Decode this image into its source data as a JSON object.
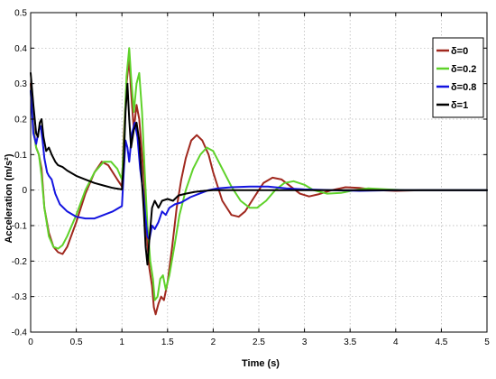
{
  "chart_data": {
    "type": "line",
    "title": "",
    "xlabel": "Time (s)",
    "ylabel": "Acceleration (m/s²)",
    "xlim": [
      0,
      5
    ],
    "ylim": [
      -0.4,
      0.5
    ],
    "xticks": [
      0,
      0.5,
      1,
      1.5,
      2,
      2.5,
      3,
      3.5,
      4,
      4.5,
      5
    ],
    "xtick_labels": [
      "0",
      "0.5",
      "1",
      "1.5",
      "2",
      "2.5",
      "3",
      "3.5",
      "4",
      "4.5",
      "5"
    ],
    "yticks": [
      -0.4,
      -0.3,
      -0.2,
      -0.1,
      0,
      0.1,
      0.2,
      0.3,
      0.4,
      0.5
    ],
    "ytick_labels": [
      "-0.4",
      "-0.3",
      "-0.2",
      "-0.1",
      "0",
      "0.1",
      "0.2",
      "0.3",
      "0.4",
      "0.5"
    ],
    "grid": true,
    "legend_position": "top-right",
    "series": [
      {
        "name": "δ=0",
        "color": "#a0281e",
        "points": [
          [
            0,
            0.3
          ],
          [
            0.03,
            0.18
          ],
          [
            0.06,
            0.12
          ],
          [
            0.09,
            0.1
          ],
          [
            0.12,
            0.06
          ],
          [
            0.15,
            -0.05
          ],
          [
            0.2,
            -0.12
          ],
          [
            0.25,
            -0.16
          ],
          [
            0.3,
            -0.175
          ],
          [
            0.35,
            -0.18
          ],
          [
            0.4,
            -0.16
          ],
          [
            0.5,
            -0.09
          ],
          [
            0.6,
            -0.01
          ],
          [
            0.7,
            0.05
          ],
          [
            0.78,
            0.08
          ],
          [
            0.85,
            0.07
          ],
          [
            0.95,
            0.03
          ],
          [
            1.0,
            0.01
          ],
          [
            1.02,
            0.15
          ],
          [
            1.05,
            0.3
          ],
          [
            1.08,
            0.37
          ],
          [
            1.1,
            0.28
          ],
          [
            1.13,
            0.17
          ],
          [
            1.16,
            0.24
          ],
          [
            1.19,
            0.2
          ],
          [
            1.22,
            0.1
          ],
          [
            1.25,
            0.0
          ],
          [
            1.27,
            -0.12
          ],
          [
            1.3,
            -0.22
          ],
          [
            1.33,
            -0.27
          ],
          [
            1.35,
            -0.33
          ],
          [
            1.37,
            -0.35
          ],
          [
            1.4,
            -0.32
          ],
          [
            1.43,
            -0.3
          ],
          [
            1.46,
            -0.31
          ],
          [
            1.5,
            -0.26
          ],
          [
            1.55,
            -0.16
          ],
          [
            1.6,
            -0.05
          ],
          [
            1.65,
            0.03
          ],
          [
            1.7,
            0.09
          ],
          [
            1.76,
            0.14
          ],
          [
            1.82,
            0.155
          ],
          [
            1.88,
            0.14
          ],
          [
            1.95,
            0.1
          ],
          [
            2.0,
            0.05
          ],
          [
            2.1,
            -0.03
          ],
          [
            2.2,
            -0.07
          ],
          [
            2.28,
            -0.075
          ],
          [
            2.35,
            -0.06
          ],
          [
            2.45,
            -0.02
          ],
          [
            2.55,
            0.02
          ],
          [
            2.65,
            0.035
          ],
          [
            2.75,
            0.03
          ],
          [
            2.85,
            0.01
          ],
          [
            2.95,
            -0.01
          ],
          [
            3.05,
            -0.018
          ],
          [
            3.15,
            -0.012
          ],
          [
            3.3,
            0.0
          ],
          [
            3.45,
            0.008
          ],
          [
            3.6,
            0.006
          ],
          [
            3.8,
            0.0
          ],
          [
            4.0,
            -0.002
          ],
          [
            4.3,
            0.0
          ],
          [
            4.6,
            0.0
          ],
          [
            5.0,
            0.0
          ]
        ]
      },
      {
        "name": "δ=0.2",
        "color": "#5fd22a",
        "points": [
          [
            0,
            0.28
          ],
          [
            0.03,
            0.17
          ],
          [
            0.06,
            0.12
          ],
          [
            0.09,
            0.1
          ],
          [
            0.12,
            0.04
          ],
          [
            0.15,
            -0.05
          ],
          [
            0.2,
            -0.13
          ],
          [
            0.25,
            -0.16
          ],
          [
            0.3,
            -0.165
          ],
          [
            0.35,
            -0.155
          ],
          [
            0.4,
            -0.13
          ],
          [
            0.5,
            -0.07
          ],
          [
            0.6,
            0.0
          ],
          [
            0.7,
            0.05
          ],
          [
            0.8,
            0.08
          ],
          [
            0.88,
            0.08
          ],
          [
            0.95,
            0.06
          ],
          [
            1.0,
            0.03
          ],
          [
            1.02,
            0.12
          ],
          [
            1.05,
            0.32
          ],
          [
            1.08,
            0.4
          ],
          [
            1.1,
            0.32
          ],
          [
            1.13,
            0.22
          ],
          [
            1.16,
            0.3
          ],
          [
            1.19,
            0.33
          ],
          [
            1.22,
            0.22
          ],
          [
            1.25,
            0.05
          ],
          [
            1.28,
            -0.1
          ],
          [
            1.31,
            -0.2
          ],
          [
            1.34,
            -0.25
          ],
          [
            1.36,
            -0.31
          ],
          [
            1.39,
            -0.3
          ],
          [
            1.42,
            -0.25
          ],
          [
            1.45,
            -0.24
          ],
          [
            1.48,
            -0.28
          ],
          [
            1.52,
            -0.24
          ],
          [
            1.58,
            -0.15
          ],
          [
            1.63,
            -0.07
          ],
          [
            1.7,
            0.0
          ],
          [
            1.78,
            0.06
          ],
          [
            1.86,
            0.1
          ],
          [
            1.93,
            0.12
          ],
          [
            2.0,
            0.11
          ],
          [
            2.1,
            0.06
          ],
          [
            2.2,
            0.01
          ],
          [
            2.3,
            -0.03
          ],
          [
            2.4,
            -0.05
          ],
          [
            2.48,
            -0.05
          ],
          [
            2.58,
            -0.03
          ],
          [
            2.68,
            0.0
          ],
          [
            2.78,
            0.02
          ],
          [
            2.88,
            0.025
          ],
          [
            3.0,
            0.015
          ],
          [
            3.1,
            0.0
          ],
          [
            3.25,
            -0.01
          ],
          [
            3.4,
            -0.008
          ],
          [
            3.55,
            0.0
          ],
          [
            3.7,
            0.005
          ],
          [
            3.9,
            0.002
          ],
          [
            4.1,
            0.0
          ],
          [
            4.5,
            0.0
          ],
          [
            5.0,
            0.0
          ]
        ]
      },
      {
        "name": "δ=0.8",
        "color": "#1414e0",
        "points": [
          [
            0,
            0.28
          ],
          [
            0.03,
            0.16
          ],
          [
            0.06,
            0.13
          ],
          [
            0.09,
            0.17
          ],
          [
            0.11,
            0.18
          ],
          [
            0.13,
            0.14
          ],
          [
            0.15,
            0.09
          ],
          [
            0.18,
            0.05
          ],
          [
            0.2,
            0.04
          ],
          [
            0.23,
            0.03
          ],
          [
            0.27,
            -0.01
          ],
          [
            0.32,
            -0.04
          ],
          [
            0.4,
            -0.06
          ],
          [
            0.5,
            -0.075
          ],
          [
            0.6,
            -0.08
          ],
          [
            0.7,
            -0.08
          ],
          [
            0.8,
            -0.07
          ],
          [
            0.9,
            -0.06
          ],
          [
            1.0,
            -0.045
          ],
          [
            1.02,
            0.05
          ],
          [
            1.04,
            0.14
          ],
          [
            1.06,
            0.12
          ],
          [
            1.08,
            0.08
          ],
          [
            1.11,
            0.16
          ],
          [
            1.14,
            0.19
          ],
          [
            1.17,
            0.15
          ],
          [
            1.2,
            0.06
          ],
          [
            1.23,
            0.0
          ],
          [
            1.26,
            -0.08
          ],
          [
            1.28,
            -0.13
          ],
          [
            1.3,
            -0.14
          ],
          [
            1.33,
            -0.1
          ],
          [
            1.36,
            -0.11
          ],
          [
            1.4,
            -0.09
          ],
          [
            1.44,
            -0.06
          ],
          [
            1.48,
            -0.07
          ],
          [
            1.52,
            -0.05
          ],
          [
            1.58,
            -0.04
          ],
          [
            1.65,
            -0.035
          ],
          [
            1.75,
            -0.02
          ],
          [
            1.85,
            -0.01
          ],
          [
            1.95,
            0.0
          ],
          [
            2.05,
            0.005
          ],
          [
            2.2,
            0.008
          ],
          [
            2.4,
            0.01
          ],
          [
            2.6,
            0.01
          ],
          [
            2.8,
            0.005
          ],
          [
            3.0,
            0.002
          ],
          [
            3.3,
            0.0
          ],
          [
            3.6,
            -0.002
          ],
          [
            4.0,
            0.0
          ],
          [
            4.5,
            0.0
          ],
          [
            5.0,
            0.0
          ]
        ]
      },
      {
        "name": "δ=1",
        "color": "#000000",
        "points": [
          [
            0,
            0.33
          ],
          [
            0.03,
            0.24
          ],
          [
            0.06,
            0.16
          ],
          [
            0.08,
            0.15
          ],
          [
            0.1,
            0.19
          ],
          [
            0.12,
            0.2
          ],
          [
            0.14,
            0.15
          ],
          [
            0.17,
            0.11
          ],
          [
            0.2,
            0.12
          ],
          [
            0.23,
            0.1
          ],
          [
            0.27,
            0.08
          ],
          [
            0.3,
            0.07
          ],
          [
            0.35,
            0.065
          ],
          [
            0.4,
            0.055
          ],
          [
            0.5,
            0.04
          ],
          [
            0.6,
            0.03
          ],
          [
            0.7,
            0.02
          ],
          [
            0.8,
            0.013
          ],
          [
            0.9,
            0.006
          ],
          [
            1.0,
            0.002
          ],
          [
            1.02,
            0.08
          ],
          [
            1.04,
            0.22
          ],
          [
            1.06,
            0.3
          ],
          [
            1.08,
            0.2
          ],
          [
            1.1,
            0.12
          ],
          [
            1.13,
            0.17
          ],
          [
            1.16,
            0.19
          ],
          [
            1.19,
            0.14
          ],
          [
            1.22,
            0.02
          ],
          [
            1.24,
            -0.06
          ],
          [
            1.26,
            -0.16
          ],
          [
            1.28,
            -0.21
          ],
          [
            1.3,
            -0.14
          ],
          [
            1.33,
            -0.05
          ],
          [
            1.36,
            -0.03
          ],
          [
            1.4,
            -0.05
          ],
          [
            1.44,
            -0.03
          ],
          [
            1.5,
            -0.025
          ],
          [
            1.56,
            -0.03
          ],
          [
            1.62,
            -0.015
          ],
          [
            1.7,
            -0.01
          ],
          [
            1.8,
            -0.005
          ],
          [
            1.9,
            -0.002
          ],
          [
            2.0,
            0.0
          ],
          [
            2.3,
            0.0
          ],
          [
            2.6,
            0.0
          ],
          [
            3.0,
            0.0
          ],
          [
            3.5,
            0.0
          ],
          [
            4.0,
            0.0
          ],
          [
            5.0,
            0.0
          ]
        ]
      }
    ]
  }
}
